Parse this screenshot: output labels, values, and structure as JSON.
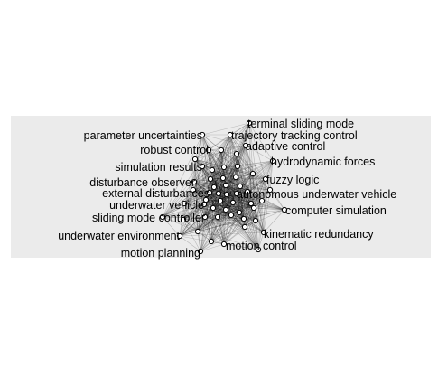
{
  "diagram": {
    "type": "network",
    "panel_background": "#ebebeb",
    "node_fill": "#ffffff",
    "edge_color": "#000000",
    "labels": [
      "terminal sliding mode",
      "parameter uncertainties",
      "trajectory tracking control",
      "robust control",
      "adaptive control",
      "hydrodynamic forces",
      "simulation results",
      "fuzzy logic",
      "disturbance observer",
      "external disturbances",
      "autonomous underwater vehicle",
      "underwater vehicle",
      "computer simulation",
      "sliding mode controller",
      "kinematic redundancy",
      "underwater environment",
      "motion control",
      "motion planning"
    ]
  }
}
